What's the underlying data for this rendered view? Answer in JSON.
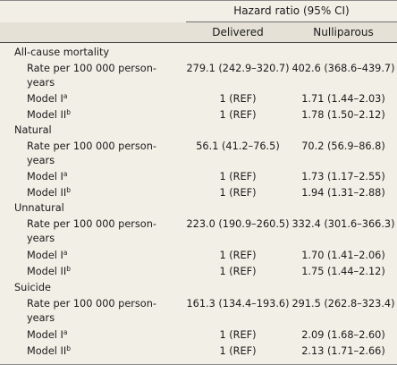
{
  "header": {
    "group_label": "Hazard ratio (95% CI)",
    "col_delivered": "Delivered",
    "col_nulliparous": "Nulliparous"
  },
  "sections": [
    {
      "title": "All-cause mortality",
      "rate_label_1": "Rate per 100 000 person-",
      "rate_label_2": "years",
      "rate_delivered": "279.1 (242.9–320.7)",
      "rate_nulliparous": "402.6 (368.6–439.7)",
      "m1_label": "Model I",
      "m1_sup": "a",
      "m1_delivered": "1 (REF)",
      "m1_nulliparous": "1.71 (1.44–2.03)",
      "m2_label": "Model II",
      "m2_sup": "b",
      "m2_delivered": "1 (REF)",
      "m2_nulliparous": "1.78 (1.50–2.12)"
    },
    {
      "title": "Natural",
      "rate_label_1": "Rate per 100 000 person-",
      "rate_label_2": "years",
      "rate_delivered": "56.1 (41.2–76.5)",
      "rate_nulliparous": "70.2 (56.9–86.8)",
      "m1_label": "Model I",
      "m1_sup": "a",
      "m1_delivered": "1 (REF)",
      "m1_nulliparous": "1.73 (1.17–2.55)",
      "m2_label": "Model II",
      "m2_sup": "b",
      "m2_delivered": "1 (REF)",
      "m2_nulliparous": "1.94 (1.31–2.88)"
    },
    {
      "title": "Unnatural",
      "rate_label_1": "Rate per 100 000 person-",
      "rate_label_2": "years",
      "rate_delivered": "223.0 (190.9–260.5)",
      "rate_nulliparous": "332.4 (301.6–366.3)",
      "m1_label": "Model I",
      "m1_sup": "a",
      "m1_delivered": "1 (REF)",
      "m1_nulliparous": "1.70 (1.41–2.06)",
      "m2_label": "Model II",
      "m2_sup": "b",
      "m2_delivered": "1 (REF)",
      "m2_nulliparous": "1.75 (1.44–2.12)"
    },
    {
      "title": "Suicide",
      "rate_label_1": "Rate per 100 000 person-",
      "rate_label_2": "years",
      "rate_delivered": "161.3 (134.4–193.6)",
      "rate_nulliparous": "291.5 (262.8–323.4)",
      "m1_label": "Model I",
      "m1_sup": "a",
      "m1_delivered": "1 (REF)",
      "m1_nulliparous": "2.09 (1.68–2.60)",
      "m2_label": "Model II",
      "m2_sup": "b",
      "m2_delivered": "1 (REF)",
      "m2_nulliparous": "2.13 (1.71–2.66)"
    }
  ]
}
